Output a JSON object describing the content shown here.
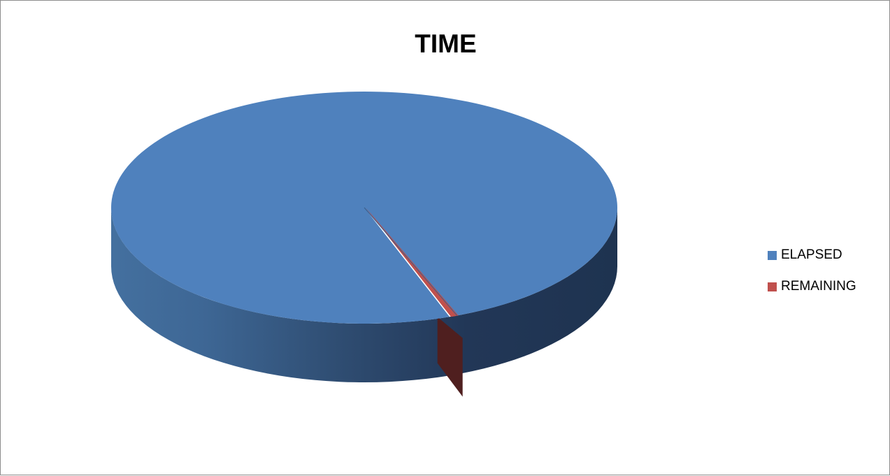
{
  "chart_data": {
    "type": "pie",
    "title": "TIME",
    "style": "3d",
    "legend_position": "right",
    "slices": [
      {
        "label": "ELAPSED",
        "value": 99.5,
        "color": "#4f81bd"
      },
      {
        "label": "REMAINING",
        "value": 0.5,
        "color": "#c0504d"
      }
    ]
  }
}
